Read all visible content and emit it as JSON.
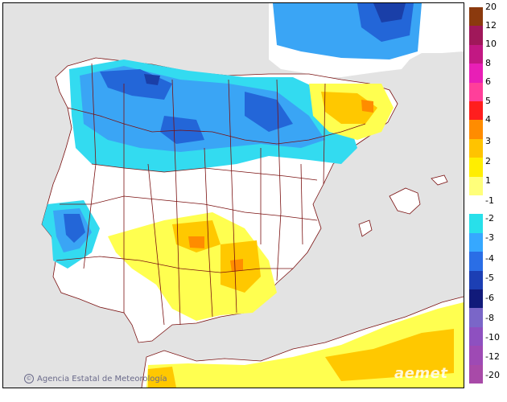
{
  "credit_text": "Agencia Estatal de Meteorología",
  "brand_text": "aemet",
  "legend": {
    "labels": [
      "20",
      "12",
      "10",
      "8",
      "6",
      "5",
      "4",
      "3",
      "2",
      "1",
      "-1",
      "-2",
      "-3",
      "-4",
      "-5",
      "-6",
      "-8",
      "-10",
      "-12",
      "-20"
    ],
    "positive_colors": [
      "#8b3a0e",
      "#a0185a",
      "#c21883",
      "#e81fb6",
      "#ff3f9a",
      "#ff1e1e",
      "#ff8c00",
      "#ffc300",
      "#ffee00",
      "#ffff7a"
    ],
    "neutral_color": "#ffffff",
    "negative_colors": [
      "#28e0ea",
      "#36a8ff",
      "#2a6ee6",
      "#1c3fb4",
      "#111a7a",
      "#7a66c8",
      "#8e50c0",
      "#9e4ab4",
      "#a84aa8"
    ]
  },
  "colors": {
    "sea": "#e3e3e3",
    "land": "#ffffff",
    "borders": "#7a1010",
    "cold_light": "#33dbf0",
    "cold_mid": "#3aa5f5",
    "cold_dark": "#2366d8",
    "cold_darker": "#1a3fa8",
    "warm_light": "#ffff50",
    "warm_mid": "#ffc800",
    "warm_dark": "#ff8c00"
  }
}
